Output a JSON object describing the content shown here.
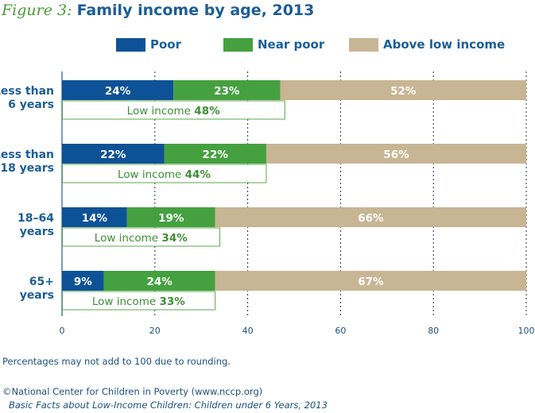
{
  "header": {
    "figure_label": "Figure 3:",
    "title": "Family income by age, 2013"
  },
  "colors": {
    "poor": "#0d5296",
    "near_poor": "#45a040",
    "above_low_income": "#c8b593",
    "title_blue": "#1b5e96",
    "low_income_green": "#3d8f34"
  },
  "chart_data": {
    "type": "bar",
    "orientation": "horizontal",
    "stacked": true,
    "categories": [
      [
        "Less than",
        "6 years"
      ],
      [
        "Less than",
        "18 years"
      ],
      [
        "18–64",
        "years"
      ],
      [
        "65+",
        "years"
      ]
    ],
    "series": [
      {
        "name": "Poor",
        "values": [
          24,
          22,
          14,
          9
        ],
        "labels": [
          "24%",
          "22%",
          "14%",
          "9%"
        ]
      },
      {
        "name": "Near poor",
        "values": [
          23,
          22,
          19,
          24
        ],
        "labels": [
          "23%",
          "22%",
          "19%",
          "24%"
        ]
      },
      {
        "name": "Above low income",
        "values": [
          52,
          56,
          66,
          67
        ],
        "labels": [
          "52%",
          "56%",
          "66%",
          "67%"
        ]
      }
    ],
    "low_income": {
      "label": "Low income",
      "values": [
        48,
        44,
        34,
        33
      ],
      "value_labels": [
        "48%",
        "44%",
        "34%",
        "33%"
      ]
    },
    "xlim": [
      0,
      100
    ],
    "xticks": [
      0,
      20,
      40,
      60,
      80,
      100
    ],
    "grid": true,
    "legend_position": "top"
  },
  "footer": {
    "note": "Percentages may not add to 100 due to rounding.",
    "copyright": "©National Center for Children in Poverty (www.nccp.org)",
    "source": "Basic Facts about Low-Income Children: Children under 6 Years, 2013"
  }
}
